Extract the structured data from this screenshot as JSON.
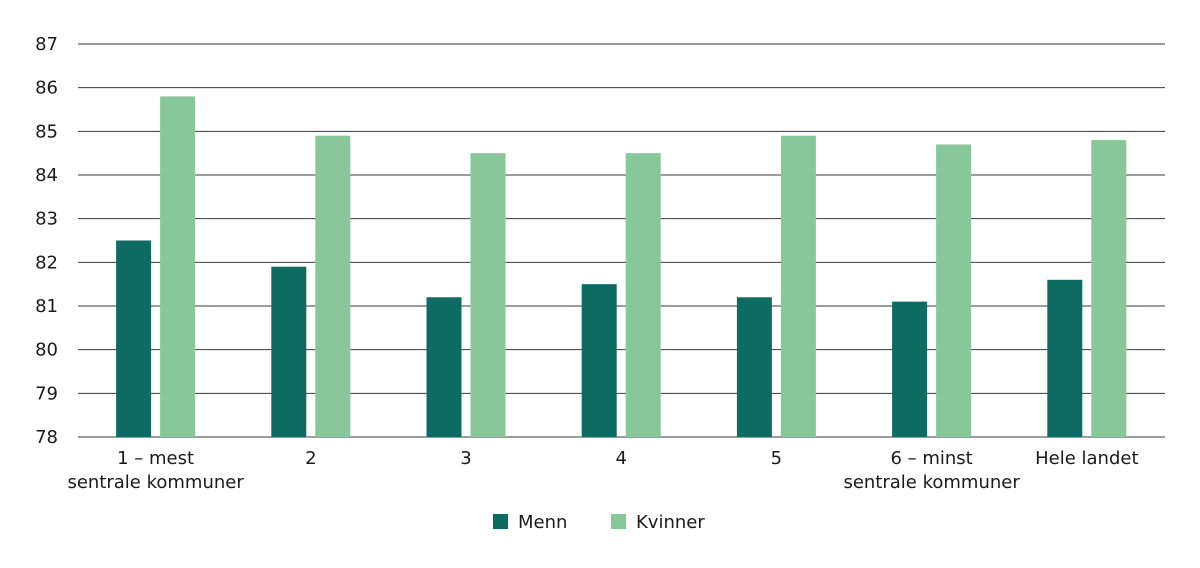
{
  "chart_data": {
    "type": "bar",
    "title": "",
    "xlabel": "",
    "ylabel": "",
    "ylim": [
      78,
      87
    ],
    "yticks": [
      78,
      79,
      80,
      81,
      82,
      83,
      84,
      85,
      86,
      87
    ],
    "grid": true,
    "legend_position": "bottom",
    "categories": [
      [
        "1 – mest",
        "sentrale kommuner"
      ],
      [
        "2"
      ],
      [
        "3"
      ],
      [
        "4"
      ],
      [
        "5"
      ],
      [
        "6 – minst",
        "sentrale kommuner"
      ],
      [
        "Hele landet"
      ]
    ],
    "series": [
      {
        "name": "Menn",
        "color": "#0e6b62",
        "values": [
          82.5,
          81.9,
          81.2,
          81.5,
          81.2,
          81.1,
          81.6
        ]
      },
      {
        "name": "Kvinner",
        "color": "#88c79a",
        "values": [
          85.8,
          84.9,
          84.5,
          84.5,
          84.9,
          84.7,
          84.8
        ]
      }
    ]
  }
}
